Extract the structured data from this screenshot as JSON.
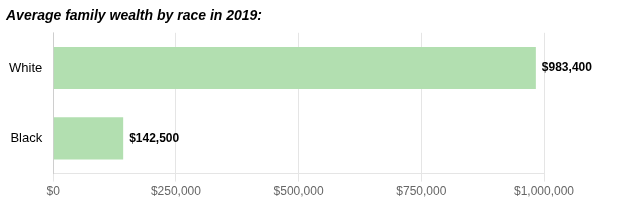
{
  "chart_data": {
    "type": "bar",
    "orientation": "horizontal",
    "title": "Average family wealth by race in 2019:",
    "categories": [
      "Black",
      "White"
    ],
    "values": [
      142500,
      983400
    ],
    "value_labels": [
      "$142,500",
      "$983,400"
    ],
    "data_labels": true,
    "color": "#b2dfb0",
    "xlim": [
      0,
      1000000
    ],
    "xticks": [
      {
        "value": 0,
        "label": "$0"
      },
      {
        "value": 250000,
        "label": "$250,000"
      },
      {
        "value": 500000,
        "label": "$500,000"
      },
      {
        "value": 750000,
        "label": "$750,000"
      },
      {
        "value": 1000000,
        "label": "$1,000,000"
      }
    ],
    "grid": true
  }
}
